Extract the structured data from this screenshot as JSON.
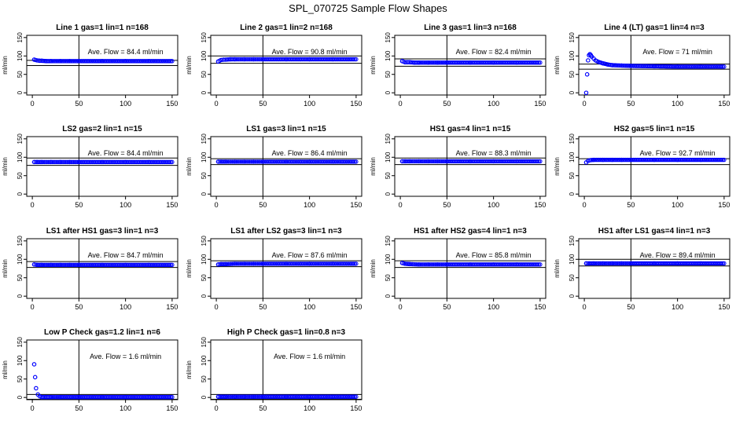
{
  "title": "SPL_070725  Sample Flow Shapes",
  "chart_data": [
    {
      "type": "scatter",
      "title": "Line 1 gas=1 lin=1 n=168",
      "ylabel": "ml/min",
      "annotation": "Ave. Flow =  84.4  ml/min",
      "mean": 84.4,
      "xlim": [
        0,
        150
      ],
      "ylim": [
        0,
        150
      ],
      "xticks": [
        0,
        50,
        100,
        150
      ],
      "yticks": [
        0,
        50,
        100,
        150
      ],
      "vline_x": 50,
      "hlines": [
        74,
        88
      ],
      "x": [
        2,
        5,
        8,
        10,
        15,
        20,
        30,
        40,
        50,
        75,
        100,
        125,
        150
      ],
      "y": [
        90,
        88,
        87,
        87,
        86,
        86,
        86,
        86,
        86,
        86,
        86,
        86,
        86
      ]
    },
    {
      "type": "scatter",
      "title": "Line 2 gas=1 lin=2 n=168",
      "ylabel": "ml/min",
      "annotation": "Ave. Flow =  90.8  ml/min",
      "mean": 90.8,
      "xlim": [
        0,
        150
      ],
      "ylim": [
        0,
        150
      ],
      "xticks": [
        0,
        50,
        100,
        150
      ],
      "yticks": [
        0,
        50,
        100,
        150
      ],
      "vline_x": 50,
      "hlines": [
        80,
        100
      ],
      "x": [
        2,
        5,
        8,
        10,
        15,
        20,
        30,
        40,
        50,
        75,
        100,
        125,
        150
      ],
      "y": [
        85,
        89,
        90,
        90,
        91,
        91,
        91,
        91,
        91,
        91,
        91,
        91,
        91
      ]
    },
    {
      "type": "scatter",
      "title": "Line 3 gas=1 lin=3 n=168",
      "ylabel": "ml/min",
      "annotation": "Ave. Flow =  82.4  ml/min",
      "mean": 82.4,
      "xlim": [
        0,
        150
      ],
      "ylim": [
        0,
        150
      ],
      "xticks": [
        0,
        50,
        100,
        150
      ],
      "yticks": [
        0,
        50,
        100,
        150
      ],
      "vline_x": 50,
      "hlines": [
        72,
        92
      ],
      "x": [
        2,
        5,
        8,
        10,
        15,
        20,
        30,
        40,
        50,
        75,
        100,
        125,
        150
      ],
      "y": [
        86,
        83,
        83,
        83,
        82,
        82,
        82,
        82,
        82,
        82,
        82,
        82,
        82
      ]
    },
    {
      "type": "scatter",
      "title": "Line 4 (LT) gas=1 lin=4 n=3",
      "ylabel": "ml/min",
      "annotation": "Ave. Flow =  71  ml/min",
      "mean": 71,
      "xlim": [
        0,
        150
      ],
      "ylim": [
        0,
        150
      ],
      "xticks": [
        0,
        50,
        100,
        150
      ],
      "yticks": [
        0,
        50,
        100,
        150
      ],
      "vline_x": 50,
      "hlines": [
        64,
        78
      ],
      "x": [
        2,
        3,
        4,
        5,
        6,
        7,
        8,
        10,
        12,
        15,
        20,
        25,
        30,
        40,
        50,
        75,
        100,
        125,
        150
      ],
      "y": [
        0,
        50,
        88,
        102,
        105,
        102,
        98,
        93,
        88,
        84,
        80,
        77,
        75,
        74,
        73,
        72,
        71,
        71,
        71
      ]
    },
    {
      "type": "scatter",
      "title": "LS2 gas=2 lin=1 n=15",
      "ylabel": "ml/min",
      "annotation": "Ave. Flow =  84.4  ml/min",
      "mean": 84.4,
      "xlim": [
        0,
        150
      ],
      "ylim": [
        0,
        150
      ],
      "xticks": [
        0,
        50,
        100,
        150
      ],
      "yticks": [
        0,
        50,
        100,
        150
      ],
      "vline_x": 50,
      "hlines": [
        78,
        98
      ],
      "x": [
        2,
        5,
        10,
        20,
        30,
        40,
        50,
        75,
        100,
        125,
        150
      ],
      "y": [
        87,
        87,
        87,
        87,
        87,
        87,
        87,
        87,
        87,
        87,
        87
      ]
    },
    {
      "type": "scatter",
      "title": "LS1 gas=3 lin=1 n=15",
      "ylabel": "ml/min",
      "annotation": "Ave. Flow =  86.4  ml/min",
      "mean": 86.4,
      "xlim": [
        0,
        150
      ],
      "ylim": [
        0,
        150
      ],
      "xticks": [
        0,
        50,
        100,
        150
      ],
      "yticks": [
        0,
        50,
        100,
        150
      ],
      "vline_x": 50,
      "hlines": [
        80,
        96
      ],
      "x": [
        2,
        5,
        10,
        20,
        30,
        40,
        50,
        75,
        100,
        125,
        150
      ],
      "y": [
        88,
        88,
        88,
        88,
        88,
        88,
        88,
        88,
        88,
        88,
        88
      ]
    },
    {
      "type": "scatter",
      "title": "HS1 gas=4 lin=1 n=15",
      "ylabel": "ml/min",
      "annotation": "Ave. Flow =  88.3  ml/min",
      "mean": 88.3,
      "xlim": [
        0,
        150
      ],
      "ylim": [
        0,
        150
      ],
      "xticks": [
        0,
        50,
        100,
        150
      ],
      "yticks": [
        0,
        50,
        100,
        150
      ],
      "vline_x": 50,
      "hlines": [
        80,
        98
      ],
      "x": [
        2,
        5,
        10,
        20,
        30,
        40,
        50,
        75,
        100,
        125,
        150
      ],
      "y": [
        89,
        89,
        89,
        89,
        89,
        89,
        89,
        89,
        89,
        89,
        89
      ]
    },
    {
      "type": "scatter",
      "title": "HS2 gas=5 lin=1 n=15",
      "ylabel": "ml/min",
      "annotation": "Ave. Flow =  92.7  ml/min",
      "mean": 92.7,
      "xlim": [
        0,
        150
      ],
      "ylim": [
        0,
        150
      ],
      "xticks": [
        0,
        50,
        100,
        150
      ],
      "yticks": [
        0,
        50,
        100,
        150
      ],
      "vline_x": 50,
      "hlines": [
        80,
        96
      ],
      "x": [
        2,
        4,
        6,
        10,
        20,
        30,
        40,
        50,
        75,
        100,
        125,
        150
      ],
      "y": [
        86,
        90,
        92,
        93,
        93,
        93,
        93,
        93,
        93,
        93,
        93,
        93
      ]
    },
    {
      "type": "scatter",
      "title": "LS1 after HS1 gas=3 lin=1 n=3",
      "ylabel": "ml/min",
      "annotation": "Ave. Flow =  84.7  ml/min",
      "mean": 84.7,
      "xlim": [
        0,
        150
      ],
      "ylim": [
        0,
        150
      ],
      "xticks": [
        0,
        50,
        100,
        150
      ],
      "yticks": [
        0,
        50,
        100,
        150
      ],
      "vline_x": 50,
      "hlines": [
        78,
        94
      ],
      "x": [
        2,
        5,
        10,
        20,
        30,
        40,
        50,
        75,
        100,
        125,
        150
      ],
      "y": [
        86,
        85,
        85,
        85,
        85,
        85,
        85,
        85,
        85,
        85,
        85
      ]
    },
    {
      "type": "scatter",
      "title": "LS1 after LS2 gas=3 lin=1 n=3",
      "ylabel": "ml/min",
      "annotation": "Ave. Flow =  87.6  ml/min",
      "mean": 87.6,
      "xlim": [
        0,
        150
      ],
      "ylim": [
        0,
        150
      ],
      "xticks": [
        0,
        50,
        100,
        150
      ],
      "yticks": [
        0,
        50,
        100,
        150
      ],
      "vline_x": 50,
      "hlines": [
        80,
        96
      ],
      "x": [
        2,
        5,
        10,
        20,
        30,
        40,
        50,
        75,
        100,
        125,
        150
      ],
      "y": [
        86,
        87,
        87,
        88,
        88,
        88,
        88,
        88,
        88,
        88,
        88
      ]
    },
    {
      "type": "scatter",
      "title": "HS1 after HS2 gas=4 lin=1 n=3",
      "ylabel": "ml/min",
      "annotation": "Ave. Flow =  85.8  ml/min",
      "mean": 85.8,
      "xlim": [
        0,
        150
      ],
      "ylim": [
        0,
        150
      ],
      "xticks": [
        0,
        50,
        100,
        150
      ],
      "yticks": [
        0,
        50,
        100,
        150
      ],
      "vline_x": 50,
      "hlines": [
        78,
        96
      ],
      "x": [
        2,
        5,
        10,
        20,
        30,
        40,
        50,
        75,
        100,
        125,
        150
      ],
      "y": [
        90,
        88,
        87,
        86,
        86,
        86,
        86,
        86,
        86,
        86,
        86
      ]
    },
    {
      "type": "scatter",
      "title": "HS1 after LS1 gas=4 lin=1 n=3",
      "ylabel": "ml/min",
      "annotation": "Ave. Flow =  89.4  ml/min",
      "mean": 89.4,
      "xlim": [
        0,
        150
      ],
      "ylim": [
        0,
        150
      ],
      "xticks": [
        0,
        50,
        100,
        150
      ],
      "yticks": [
        0,
        50,
        100,
        150
      ],
      "vline_x": 50,
      "hlines": [
        82,
        100
      ],
      "x": [
        2,
        5,
        10,
        20,
        30,
        40,
        50,
        75,
        100,
        125,
        150
      ],
      "y": [
        89,
        89,
        89,
        89,
        89,
        89,
        89,
        89,
        89,
        89,
        89
      ]
    },
    {
      "type": "scatter",
      "title": "Low P Check gas=1.2 lin=1 n=6",
      "ylabel": "ml/min",
      "annotation": "Ave. Flow =  1.6  ml/min",
      "mean": 1.6,
      "xlim": [
        0,
        150
      ],
      "ylim": [
        0,
        150
      ],
      "xticks": [
        0,
        50,
        100,
        150
      ],
      "yticks": [
        0,
        50,
        100,
        150
      ],
      "vline_x": 50,
      "hlines": [
        -5,
        8
      ],
      "x": [
        2,
        3,
        4,
        6,
        8,
        10,
        15,
        20,
        30,
        50,
        75,
        100,
        125,
        150
      ],
      "y": [
        90,
        55,
        25,
        8,
        3,
        1,
        1,
        1,
        1,
        1,
        1,
        1,
        1,
        1
      ]
    },
    {
      "type": "scatter",
      "title": "High P Check gas=1 lin=0.8 n=3",
      "ylabel": "ml/min",
      "annotation": "Ave. Flow =  1.6  ml/min",
      "mean": 1.6,
      "xlim": [
        0,
        150
      ],
      "ylim": [
        0,
        150
      ],
      "xticks": [
        0,
        50,
        100,
        150
      ],
      "yticks": [
        0,
        50,
        100,
        150
      ],
      "vline_x": 50,
      "hlines": [
        -5,
        8
      ],
      "x": [
        2,
        5,
        10,
        20,
        30,
        40,
        50,
        75,
        100,
        125,
        150
      ],
      "y": [
        2,
        2,
        2,
        2,
        2,
        2,
        2,
        2,
        2,
        2,
        2
      ]
    }
  ],
  "colors": {
    "points": "#0000ff",
    "axis": "#000000",
    "background": "#ffffff"
  }
}
